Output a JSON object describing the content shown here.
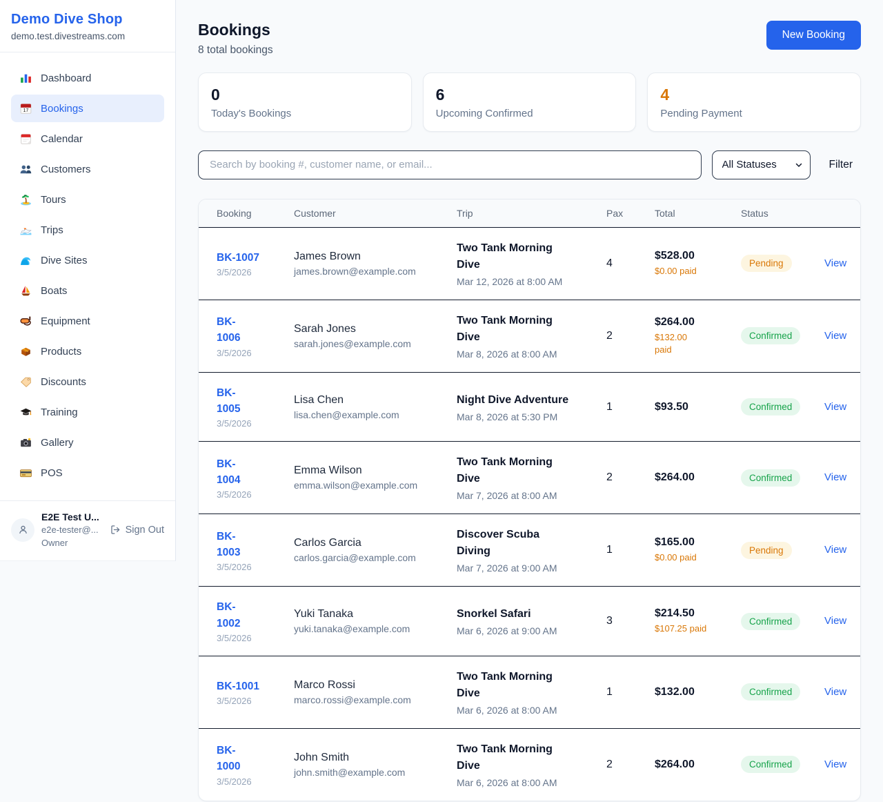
{
  "sidebar": {
    "brand": {
      "title": "Demo Dive Shop",
      "domain": "demo.test.divestreams.com"
    },
    "items": [
      {
        "label": "Dashboard",
        "icon": "dashboard-icon",
        "active": false
      },
      {
        "label": "Bookings",
        "icon": "bookings-icon",
        "active": true
      },
      {
        "label": "Calendar",
        "icon": "calendar-icon",
        "active": false
      },
      {
        "label": "Customers",
        "icon": "customers-icon",
        "active": false
      },
      {
        "label": "Tours",
        "icon": "tours-icon",
        "active": false
      },
      {
        "label": "Trips",
        "icon": "trips-icon",
        "active": false
      },
      {
        "label": "Dive Sites",
        "icon": "dive-sites-icon",
        "active": false
      },
      {
        "label": "Boats",
        "icon": "boats-icon",
        "active": false
      },
      {
        "label": "Equipment",
        "icon": "equipment-icon",
        "active": false
      },
      {
        "label": "Products",
        "icon": "products-icon",
        "active": false
      },
      {
        "label": "Discounts",
        "icon": "discounts-icon",
        "active": false
      },
      {
        "label": "Training",
        "icon": "training-icon",
        "active": false
      },
      {
        "label": "Gallery",
        "icon": "gallery-icon",
        "active": false
      },
      {
        "label": "POS",
        "icon": "pos-icon",
        "active": false
      }
    ],
    "user": {
      "name": "E2E Test U...",
      "email": "e2e-tester@...",
      "role": "Owner",
      "sign_out_label": "Sign Out"
    }
  },
  "header": {
    "title": "Bookings",
    "subtitle": "8 total bookings",
    "new_booking_label": "New Booking"
  },
  "stats": [
    {
      "value": "0",
      "label": "Today's Bookings",
      "color": "#0f172a"
    },
    {
      "value": "6",
      "label": "Upcoming Confirmed",
      "color": "#0f172a"
    },
    {
      "value": "4",
      "label": "Pending Payment",
      "color": "#d97706"
    }
  ],
  "filters": {
    "search_placeholder": "Search by booking #, customer name, or email...",
    "status_selected": "All Statuses",
    "filter_label": "Filter"
  },
  "table": {
    "columns": [
      "Booking",
      "Customer",
      "Trip",
      "Pax",
      "Total",
      "Status"
    ],
    "view_label": "View",
    "rows": [
      {
        "id": "BK-1007",
        "date": "3/5/2026",
        "customer": "James Brown",
        "email": "james.brown@example.com",
        "trip": "Two Tank Morning\nDive",
        "trip_date": "Mar 12, 2026 at 8:00 AM",
        "pax": "4",
        "total": "$528.00",
        "paid": "$0.00 paid",
        "status": "Pending"
      },
      {
        "id": "BK-\n1006",
        "date": "3/5/2026",
        "customer": "Sarah Jones",
        "email": "sarah.jones@example.com",
        "trip": "Two Tank Morning\nDive",
        "trip_date": "Mar 8, 2026 at 8:00 AM",
        "pax": "2",
        "total": "$264.00",
        "paid": "$132.00\npaid",
        "status": "Confirmed"
      },
      {
        "id": "BK-\n1005",
        "date": "3/5/2026",
        "customer": "Lisa Chen",
        "email": "lisa.chen@example.com",
        "trip": "Night Dive Adventure",
        "trip_date": "Mar 8, 2026 at 5:30 PM",
        "pax": "1",
        "total": "$93.50",
        "paid": "",
        "status": "Confirmed"
      },
      {
        "id": "BK-\n1004",
        "date": "3/5/2026",
        "customer": "Emma Wilson",
        "email": "emma.wilson@example.com",
        "trip": "Two Tank Morning\nDive",
        "trip_date": "Mar 7, 2026 at 8:00 AM",
        "pax": "2",
        "total": "$264.00",
        "paid": "",
        "status": "Confirmed"
      },
      {
        "id": "BK-\n1003",
        "date": "3/5/2026",
        "customer": "Carlos Garcia",
        "email": "carlos.garcia@example.com",
        "trip": "Discover Scuba\nDiving",
        "trip_date": "Mar 7, 2026 at 9:00 AM",
        "pax": "1",
        "total": "$165.00",
        "paid": "$0.00 paid",
        "status": "Pending"
      },
      {
        "id": "BK-\n1002",
        "date": "3/5/2026",
        "customer": "Yuki Tanaka",
        "email": "yuki.tanaka@example.com",
        "trip": "Snorkel Safari",
        "trip_date": "Mar 6, 2026 at 9:00 AM",
        "pax": "3",
        "total": "$214.50",
        "paid": "$107.25 paid",
        "status": "Confirmed"
      },
      {
        "id": "BK-1001",
        "date": "3/5/2026",
        "customer": "Marco Rossi",
        "email": "marco.rossi@example.com",
        "trip": "Two Tank Morning\nDive",
        "trip_date": "Mar 6, 2026 at 8:00 AM",
        "pax": "1",
        "total": "$132.00",
        "paid": "",
        "status": "Confirmed"
      },
      {
        "id": "BK-\n1000",
        "date": "3/5/2026",
        "customer": "John Smith",
        "email": "john.smith@example.com",
        "trip": "Two Tank Morning\nDive",
        "trip_date": "Mar 6, 2026 at 8:00 AM",
        "pax": "2",
        "total": "$264.00",
        "paid": "",
        "status": "Confirmed"
      }
    ]
  },
  "colors": {
    "accent_blue": "#2563eb",
    "pending_text": "#d97706",
    "pending_bg": "#fdf5e0",
    "confirmed_text": "#16a34a",
    "confirmed_bg": "#e5f7ec"
  }
}
